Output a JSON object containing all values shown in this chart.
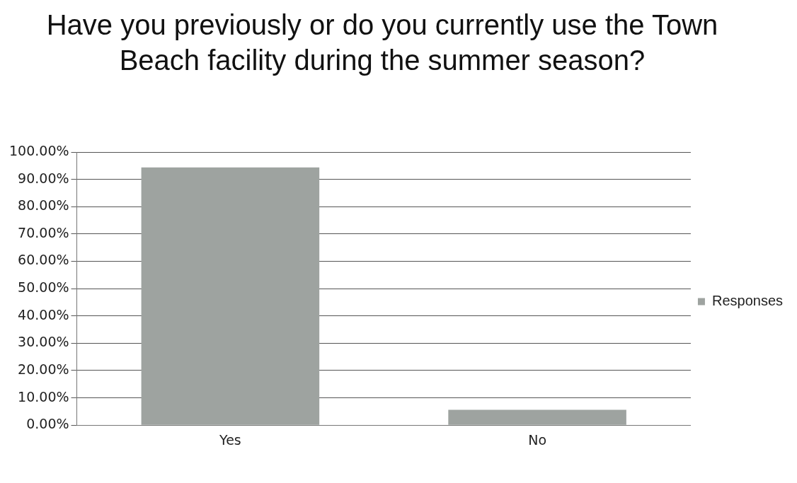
{
  "chart_data": {
    "type": "bar",
    "title": "Have you previously or do you currently use the Town Beach facility during the summer season?",
    "categories": [
      "Yes",
      "No"
    ],
    "series": [
      {
        "name": "Responses",
        "color": "#9ea3a0",
        "values": [
          94.4,
          5.6
        ]
      }
    ],
    "ylim": [
      0,
      100
    ],
    "yticks": [
      {
        "value": 0,
        "label": "0.00%"
      },
      {
        "value": 10,
        "label": "10.00%"
      },
      {
        "value": 20,
        "label": "20.00%"
      },
      {
        "value": 30,
        "label": "30.00%"
      },
      {
        "value": 40,
        "label": "40.00%"
      },
      {
        "value": 50,
        "label": "50.00%"
      },
      {
        "value": 60,
        "label": "60.00%"
      },
      {
        "value": 70,
        "label": "70.00%"
      },
      {
        "value": 80,
        "label": "80.00%"
      },
      {
        "value": 90,
        "label": "90.00%"
      },
      {
        "value": 100,
        "label": "100.00%"
      }
    ],
    "grid": "y",
    "legend": "right"
  }
}
